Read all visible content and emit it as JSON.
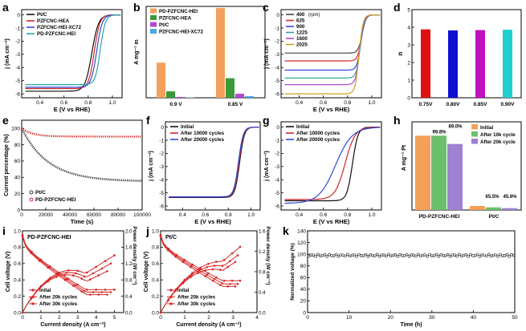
{
  "figure": {
    "panel_letters": [
      "a",
      "b",
      "c",
      "d",
      "e",
      "f",
      "g",
      "h",
      "i",
      "j",
      "k"
    ]
  },
  "chart_data": [
    {
      "id": "a",
      "type": "line",
      "xlabel": "E (V vs RHE)",
      "ylabel": "j (mA cm⁻²)",
      "xlim": [
        0.25,
        1.08
      ],
      "ylim": [
        -6.3,
        0.4
      ],
      "xticks": [
        0.4,
        0.6,
        0.8,
        1.0
      ],
      "yticks": [
        -6,
        -5,
        -4,
        -3,
        -2,
        -1,
        0
      ],
      "legend": [
        "Pt/C",
        "PZFCNC-HEA",
        "PZFCNC-HEI-XC72",
        "PD-PZFCNC-HEI"
      ],
      "series": [
        {
          "name": "Pt/C",
          "color": "#111111",
          "limit": -5.8,
          "e_half": 0.83,
          "width": 0.06
        },
        {
          "name": "PZFCNC-HEA",
          "color": "#d62828",
          "limit": -5.6,
          "e_half": 0.85,
          "width": 0.05
        },
        {
          "name": "PZFCNC-HEI-XC72",
          "color": "#3049d8",
          "limit": -5.5,
          "e_half": 0.87,
          "width": 0.05
        },
        {
          "name": "PD-PZFCNC-HEI",
          "color": "#2aa6a6",
          "limit": -5.3,
          "e_half": 0.9,
          "width": 0.045
        }
      ]
    },
    {
      "id": "b",
      "type": "bar",
      "ylabel": "A mg⁻¹ m",
      "categories": [
        "0.9 V",
        "0.85 V"
      ],
      "ylim": [
        0,
        11
      ],
      "legend_position": "top-left",
      "series": [
        {
          "name": "PD-PZFCNC-HEI",
          "color": "#f5a05a",
          "values": [
            4.3,
            11.0
          ]
        },
        {
          "name": "PZFCNC-HEA",
          "color": "#3a9a3a",
          "values": [
            0.8,
            2.4
          ]
        },
        {
          "name": "Pt/C",
          "color": "#b04ad0",
          "values": [
            0.1,
            0.5
          ]
        },
        {
          "name": "PZFCNC-HEI-XC72",
          "color": "#4aa8e8",
          "values": [
            0.05,
            0.2
          ]
        }
      ]
    },
    {
      "id": "c",
      "type": "line",
      "xlabel": "E (V vs RHE)",
      "ylabel": "j (mA cm⁻²)",
      "xlim": [
        0.25,
        1.08
      ],
      "ylim": [
        -6.3,
        0.4
      ],
      "xticks": [
        0.4,
        0.6,
        0.8,
        1.0
      ],
      "yticks": [
        -6,
        -5,
        -4,
        -3,
        -2,
        -1,
        0
      ],
      "legend_title": "(rpm)",
      "series": [
        {
          "name": "400",
          "color": "#444444",
          "limit": -2.9,
          "e_half": 0.92,
          "width": 0.035
        },
        {
          "name": "625",
          "color": "#d62828",
          "limit": -3.5,
          "e_half": 0.915,
          "width": 0.035
        },
        {
          "name": "900",
          "color": "#3049d8",
          "limit": -4.2,
          "e_half": 0.91,
          "width": 0.035
        },
        {
          "name": "1225",
          "color": "#2aa6a6",
          "limit": -4.8,
          "e_half": 0.905,
          "width": 0.035
        },
        {
          "name": "1600",
          "color": "#b04ad0",
          "limit": -5.3,
          "e_half": 0.9,
          "width": 0.035
        },
        {
          "name": "2025",
          "color": "#d4a020",
          "limit": -6.0,
          "e_half": 0.895,
          "width": 0.035
        }
      ]
    },
    {
      "id": "d",
      "type": "bar",
      "ylabel": "n",
      "categories": [
        "0.75V",
        "0.80V",
        "0.85V",
        "0.90V"
      ],
      "values": [
        3.88,
        3.82,
        3.84,
        3.86
      ],
      "colors": [
        "#e01010",
        "#1010d0",
        "#c010c0",
        "#20d0d0"
      ],
      "ylim": [
        0,
        5
      ],
      "yticks": [
        0,
        1,
        2,
        3,
        4,
        5
      ]
    },
    {
      "id": "e",
      "type": "scatter",
      "xlabel": "Time (s)",
      "ylabel": "Current percentage (%)",
      "xlim": [
        0,
        100000
      ],
      "ylim": [
        0,
        110
      ],
      "xticks": [
        0,
        20000,
        40000,
        60000,
        80000,
        100000
      ],
      "yticks": [
        0,
        20,
        40,
        60,
        80,
        100
      ],
      "legend": [
        "Pt/C",
        "PD-PZFCNC-HEI"
      ],
      "series": [
        {
          "name": "Pt/C",
          "color": "#333333",
          "start": 100,
          "end": 35
        },
        {
          "name": "PD-PZFCNC-HEI",
          "color": "#d62828",
          "start": 100,
          "end": 90
        }
      ]
    },
    {
      "id": "f",
      "type": "line",
      "xlabel": "E (V vs RHE)",
      "ylabel": "j (mA cm⁻²)",
      "xlim": [
        0.25,
        1.08
      ],
      "ylim": [
        -6.3,
        0.4
      ],
      "xticks": [
        0.4,
        0.6,
        0.8,
        1.0
      ],
      "yticks": [
        -6,
        -5,
        -4,
        -3,
        -2,
        -1,
        0
      ],
      "legend": [
        "Initial",
        "After 10000 cycles",
        "After 20000 cycles"
      ],
      "series": [
        {
          "name": "Initial",
          "color": "#111111",
          "limit": -5.35,
          "e_half": 0.9,
          "width": 0.045
        },
        {
          "name": "After 10000 cycles",
          "color": "#d62828",
          "limit": -5.3,
          "e_half": 0.895,
          "width": 0.045
        },
        {
          "name": "After 20000 cycles",
          "color": "#3049d8",
          "limit": -5.3,
          "e_half": 0.89,
          "width": 0.045
        }
      ]
    },
    {
      "id": "g",
      "type": "line",
      "xlabel": "E (V vs RHE)",
      "ylabel": "j (mA cm⁻²)",
      "xlim": [
        0.25,
        1.08
      ],
      "ylim": [
        -6.3,
        0.4
      ],
      "xticks": [
        0.4,
        0.6,
        0.8,
        1.0
      ],
      "yticks": [
        -6,
        -5,
        -4,
        -3,
        -2,
        -1,
        0
      ],
      "legend": [
        "Initial",
        "After 10000 cycles",
        "After 20000 cycles"
      ],
      "series": [
        {
          "name": "Initial",
          "color": "#111111",
          "limit": -5.6,
          "e_half": 0.84,
          "width": 0.05
        },
        {
          "name": "After 10000 cycles",
          "color": "#d62828",
          "limit": -5.5,
          "e_half": 0.78,
          "width": 0.09
        },
        {
          "name": "After 20000 cycles",
          "color": "#3049d8",
          "limit": -5.8,
          "e_half": 0.7,
          "width": 0.15
        }
      ]
    },
    {
      "id": "h",
      "type": "bar",
      "ylabel": "A mg⁻¹ Pt",
      "categories": [
        "PD-PZFCNC-HEI",
        "Pt/C"
      ],
      "ylim": [
        0,
        3.5
      ],
      "legend": [
        "Initial",
        "After 10k cycle",
        "After 20k cycle"
      ],
      "series": [
        {
          "name": "Initial",
          "color": "#f5a05a",
          "values": [
            2.95,
            0.16
          ]
        },
        {
          "name": "After 10k cycle",
          "color": "#6cc06c",
          "values": [
            2.95,
            0.105
          ]
        },
        {
          "name": "After 20k cycle",
          "color": "#a080d0",
          "values": [
            2.62,
            0.073
          ]
        }
      ],
      "annotations": [
        "99.8%",
        "89.0%",
        "65.5%",
        "45.6%"
      ]
    },
    {
      "id": "i",
      "type": "line",
      "title": "PD-PZFCNC-HEI",
      "xlabel": "Current density (A cm⁻²)",
      "ylabel": "Cell voltage (V)",
      "y2label": "Power density (W cm⁻²)",
      "xlim": [
        0,
        5.5
      ],
      "ylim": [
        0,
        1.0
      ],
      "y2lim": [
        0,
        2.0
      ],
      "xticks": [
        0,
        1,
        2,
        3,
        4,
        5
      ],
      "yticks": [
        0.0,
        0.2,
        0.4,
        0.6,
        0.8,
        1.0
      ],
      "y2ticks": [
        0.0,
        0.4,
        0.8,
        1.2,
        1.6,
        2.0
      ],
      "legend": [
        "Inital",
        "After 20k cycles",
        "After 30k cycles"
      ],
      "series": [
        {
          "name": "Inital",
          "color": "#d62828",
          "v0": 0.95,
          "vslope": 0.135,
          "vend": 0.28,
          "xmax": 5.0
        },
        {
          "name": "After 20k cycles",
          "color": "#d62828",
          "v0": 0.94,
          "vslope": 0.14,
          "vend": 0.25,
          "xmax": 4.8
        },
        {
          "name": "After 30k cycles",
          "color": "#d62828",
          "v0": 0.93,
          "vslope": 0.145,
          "vend": 0.22,
          "xmax": 4.6
        }
      ]
    },
    {
      "id": "j",
      "type": "line",
      "title": "Pt/C",
      "xlabel": "Current density (A cm⁻²)",
      "ylabel": "Cell voltage (V)",
      "y2label": "Power density (W cm⁻²)",
      "xlim": [
        0,
        4
      ],
      "ylim": [
        0,
        1.0
      ],
      "y2lim": [
        0,
        1.6
      ],
      "xticks": [
        0,
        1,
        2,
        3,
        4
      ],
      "yticks": [
        0.0,
        0.2,
        0.4,
        0.6,
        0.8,
        1.0
      ],
      "y2ticks": [
        0.0,
        0.4,
        0.8,
        1.2,
        1.6
      ],
      "legend": [
        "Inital",
        "After 20k cycles",
        "After 30k cycles"
      ],
      "series": [
        {
          "name": "Inital",
          "color": "#d62828",
          "v0": 0.95,
          "vslope": 0.14,
          "vend": 0.39,
          "xmax": 3.3
        },
        {
          "name": "After 20k cycles",
          "color": "#d62828",
          "v0": 0.94,
          "vslope": 0.15,
          "vend": 0.35,
          "xmax": 3.2
        },
        {
          "name": "After 30k cycles",
          "color": "#d62828",
          "v0": 0.93,
          "vslope": 0.16,
          "vend": 0.32,
          "xmax": 3.1
        }
      ]
    },
    {
      "id": "k",
      "type": "scatter",
      "xlabel": "Time (h)",
      "ylabel": "Normalized voltage (%)",
      "xlim": [
        0,
        50
      ],
      "ylim": [
        0,
        140
      ],
      "xticks": [
        0,
        10,
        20,
        30,
        40,
        50
      ],
      "yticks": [
        0,
        20,
        40,
        60,
        80,
        100,
        120,
        140
      ],
      "series": [
        {
          "name": "Normalized voltage",
          "color": "#222222",
          "value": 98
        }
      ]
    }
  ]
}
